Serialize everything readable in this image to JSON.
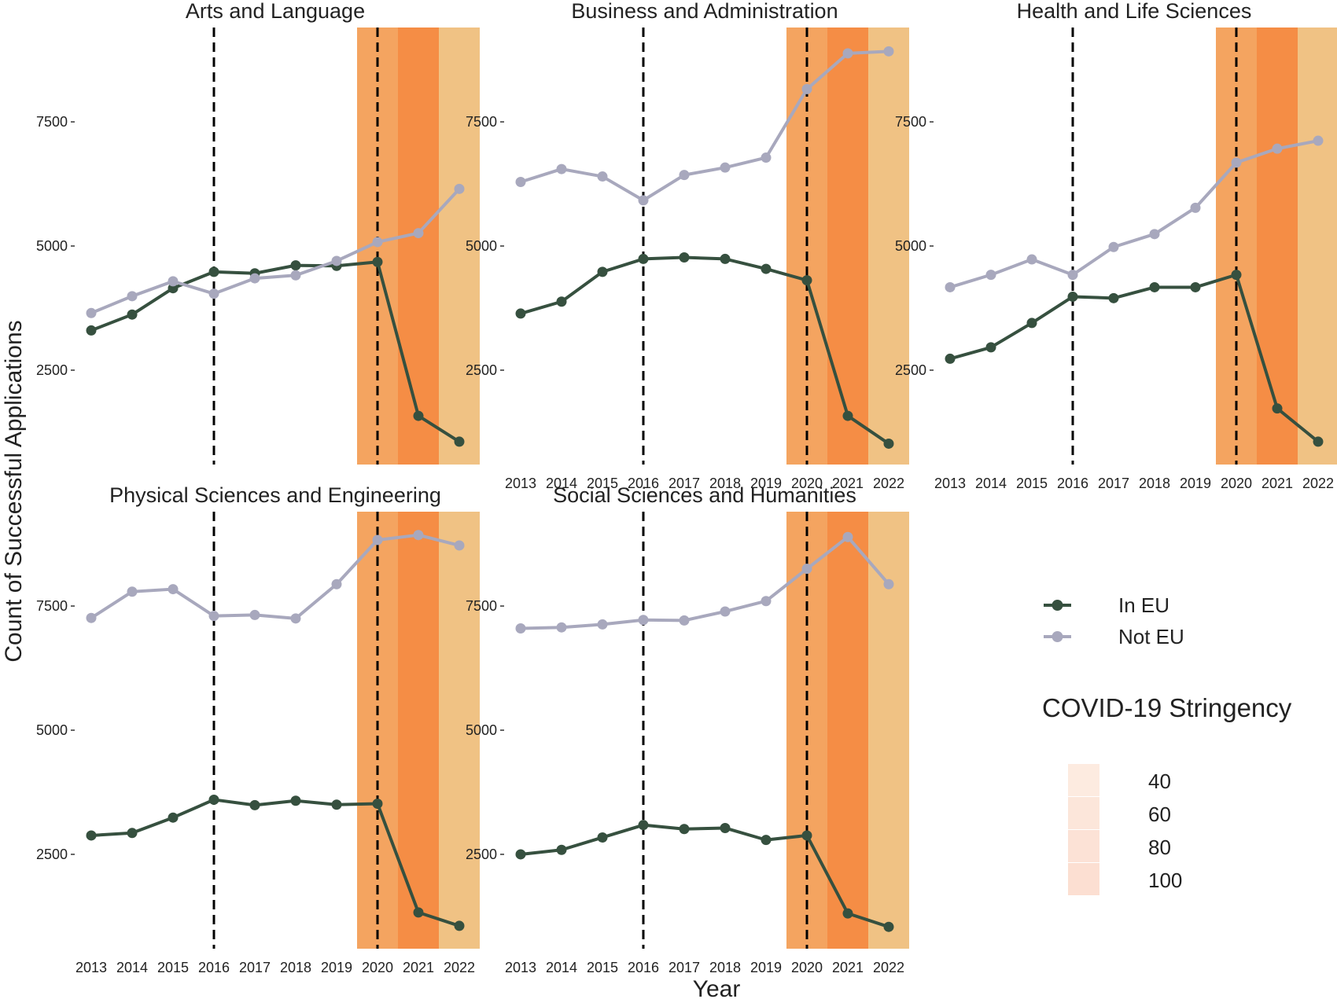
{
  "chart_data": {
    "type": "line",
    "title": "",
    "xlabel": "Year",
    "ylabel": "Count of Successful Applications",
    "x": [
      2013,
      2014,
      2015,
      2016,
      2017,
      2018,
      2019,
      2020,
      2021,
      2022
    ],
    "x_tick_labels": [
      "2013",
      "2014",
      "2015",
      "2016",
      "2017",
      "2018",
      "2019",
      "2020",
      "2021",
      "2022"
    ],
    "ylim": [
      600,
      9400
    ],
    "y_ticks": [
      2500,
      5000,
      7500
    ],
    "y_tick_labels": [
      "2500",
      "5000",
      "7500"
    ],
    "reference_lines": [
      2016,
      2020
    ],
    "stringency_bands": [
      {
        "year": 2020,
        "stringency": 70,
        "color": "#f4a460"
      },
      {
        "year": 2021,
        "stringency": 90,
        "color": "#f58d45"
      },
      {
        "year": 2022,
        "stringency": 45,
        "color": "#f0c284"
      }
    ],
    "legend": {
      "series_entries": [
        {
          "name": "In EU",
          "color": "#36503f"
        },
        {
          "name": "Not EU",
          "color": "#a8a8bd"
        }
      ],
      "fill_title": "COVID-19 Stringency",
      "fill_entries": [
        {
          "label": "40",
          "color": "#fdebe0"
        },
        {
          "label": "60",
          "color": "#fce6da"
        },
        {
          "label": "80",
          "color": "#fce2d6"
        },
        {
          "label": "100",
          "color": "#fcdfd2"
        }
      ]
    },
    "panels": [
      {
        "title": "Arts and Language",
        "series": [
          {
            "name": "In EU",
            "values": [
              3300,
              3620,
              4150,
              4480,
              4450,
              4610,
              4600,
              4680,
              1580,
              1060
            ]
          },
          {
            "name": "Not EU",
            "values": [
              3650,
              3990,
              4290,
              4040,
              4350,
              4410,
              4700,
              5080,
              5260,
              6150
            ]
          }
        ]
      },
      {
        "title": "Business and Administration",
        "series": [
          {
            "name": "In EU",
            "values": [
              3640,
              3880,
              4480,
              4740,
              4770,
              4740,
              4540,
              4310,
              1580,
              1020
            ]
          },
          {
            "name": "Not EU",
            "values": [
              6290,
              6550,
              6400,
              5920,
              6430,
              6580,
              6780,
              8160,
              8880,
              8920
            ]
          }
        ]
      },
      {
        "title": "Health and Life Sciences",
        "series": [
          {
            "name": "In EU",
            "values": [
              2730,
              2960,
              3450,
              3980,
              3950,
              4170,
              4170,
              4420,
              1730,
              1060
            ]
          },
          {
            "name": "Not EU",
            "values": [
              4170,
              4420,
              4730,
              4420,
              4980,
              5240,
              5770,
              6680,
              6960,
              7120
            ]
          }
        ]
      },
      {
        "title": "Physical Sciences and Engineering",
        "series": [
          {
            "name": "In EU",
            "values": [
              2880,
              2930,
              3240,
              3600,
              3490,
              3580,
              3500,
              3520,
              1330,
              1060
            ]
          },
          {
            "name": "Not EU",
            "values": [
              7260,
              7790,
              7840,
              7300,
              7320,
              7250,
              7940,
              8830,
              8930,
              8720
            ]
          }
        ]
      },
      {
        "title": "Social Sciences and Humanities",
        "series": [
          {
            "name": "In EU",
            "values": [
              2500,
              2590,
              2840,
              3090,
              3010,
              3030,
              2790,
              2880,
              1310,
              1040
            ]
          },
          {
            "name": "Not EU",
            "values": [
              7050,
              7070,
              7130,
              7220,
              7210,
              7390,
              7600,
              8250,
              8890,
              7940
            ]
          }
        ]
      }
    ]
  }
}
